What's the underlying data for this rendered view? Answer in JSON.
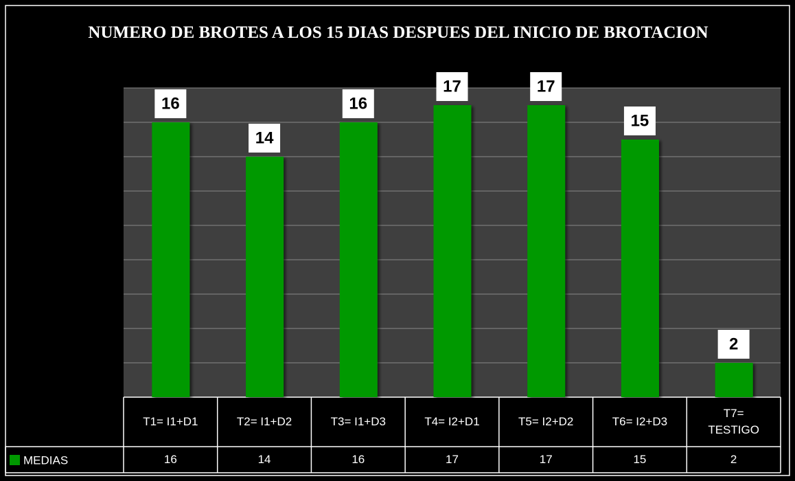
{
  "chart_data": {
    "type": "bar",
    "title": "NUMERO DE BROTES A LOS 15 DIAS DESPUES DEL INICIO DE BROTACION",
    "categories": [
      "T1= I1+D1",
      "T2= I1+D2",
      "T3= I1+D3",
      "T4= I2+D1",
      "T5= I2+D2",
      "T6= I2+D3",
      "T7= TESTIGO"
    ],
    "series": [
      {
        "name": "MEDIAS",
        "color": "#009900",
        "values": [
          16,
          14,
          16,
          17,
          17,
          15,
          2
        ]
      }
    ],
    "ylim": [
      0,
      18
    ],
    "yticks": [
      0,
      2,
      4,
      6,
      8,
      10,
      12,
      14,
      16,
      18
    ],
    "grid": true
  }
}
